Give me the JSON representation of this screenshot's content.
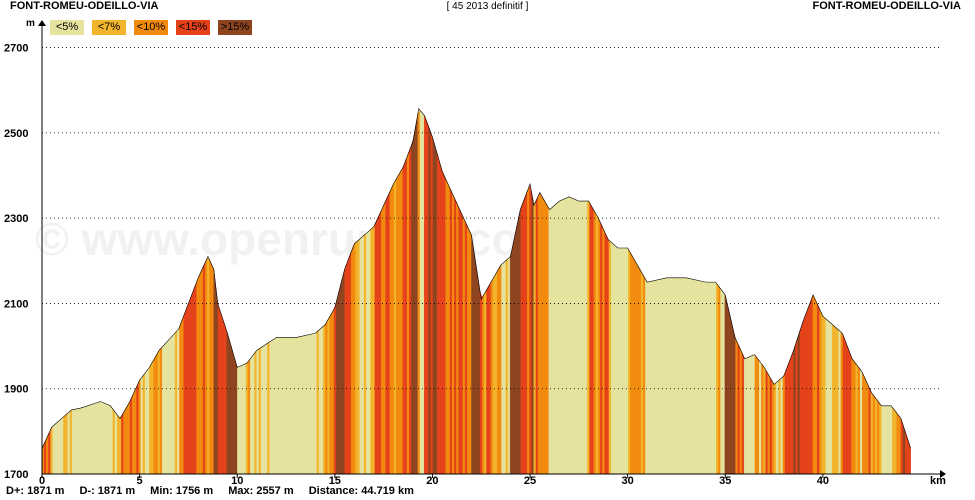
{
  "header": {
    "start": "FONT-ROMEU-ODEILLO-VIA",
    "title": "[ 45 2013 definitif ]",
    "end": "FONT-ROMEU-ODEILLO-VIA"
  },
  "legend": [
    {
      "label": "<5%",
      "color": "#e5e39e"
    },
    {
      "label": "<7%",
      "color": "#f2b42a"
    },
    {
      "label": "<10%",
      "color": "#f28a0e"
    },
    {
      "label": "<15%",
      "color": "#e5421a"
    },
    {
      "label": ">15%",
      "color": "#8f4420"
    }
  ],
  "watermark": "© www.openrunner.com",
  "footer": {
    "d_plus": "D+: 1871 m",
    "d_minus": "D-: 1871 m",
    "min": "Min: 1756 m",
    "max": "Max: 2557 m",
    "distance": "Distance: 44.719 km"
  },
  "chart_data": {
    "type": "area",
    "title": "[ 45 2013 definitif ]",
    "xlabel": "km",
    "ylabel": "m",
    "xlim": [
      0,
      46
    ],
    "ylim": [
      1700,
      2760
    ],
    "x_ticks": [
      0,
      5,
      10,
      15,
      20,
      25,
      30,
      35,
      40
    ],
    "y_ticks": [
      1700,
      1900,
      2100,
      2300,
      2500,
      2700
    ],
    "grid": true,
    "legend_position": "top-left",
    "series": [
      {
        "x": [
          0,
          0.5,
          1,
          1.5,
          2,
          3,
          3.5,
          4,
          4.5,
          5,
          5.5,
          6,
          7,
          7.5,
          8,
          8.5,
          8.8,
          9,
          9.5,
          10,
          10.5,
          11,
          12,
          13,
          14,
          14.5,
          15,
          15.5,
          16,
          16.5,
          17,
          18,
          18.5,
          19,
          19.3,
          19.6,
          20,
          20.5,
          21,
          21.5,
          22,
          22.5,
          23,
          23.5,
          24,
          24.5,
          25,
          25.2,
          25.5,
          26,
          26.5,
          27,
          27.5,
          28,
          28.5,
          29,
          29.5,
          30,
          31,
          32,
          33,
          34,
          34.5,
          35,
          35.5,
          36,
          36.5,
          37,
          37.5,
          38,
          38.5,
          39,
          39.5,
          40,
          40.5,
          41,
          41.5,
          42,
          42.5,
          43,
          43.5,
          44,
          44.5
        ],
        "y": [
          1760,
          1810,
          1830,
          1850,
          1855,
          1870,
          1860,
          1830,
          1870,
          1920,
          1950,
          1990,
          2040,
          2100,
          2160,
          2210,
          2180,
          2100,
          2030,
          1950,
          1960,
          1990,
          2020,
          2020,
          2030,
          2050,
          2090,
          2180,
          2240,
          2260,
          2280,
          2380,
          2420,
          2480,
          2557,
          2540,
          2490,
          2410,
          2360,
          2310,
          2260,
          2110,
          2150,
          2190,
          2210,
          2320,
          2380,
          2330,
          2360,
          2320,
          2340,
          2350,
          2340,
          2340,
          2300,
          2250,
          2230,
          2230,
          2150,
          2160,
          2160,
          2150,
          2150,
          2120,
          2020,
          1970,
          1980,
          1950,
          1910,
          1930,
          1990,
          2060,
          2120,
          2070,
          2050,
          2030,
          1970,
          1940,
          1890,
          1860,
          1860,
          1830,
          1760
        ]
      }
    ]
  }
}
